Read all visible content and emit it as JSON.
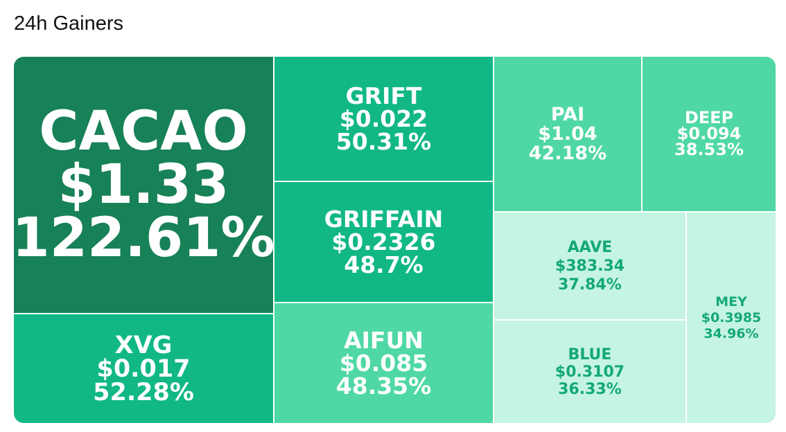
{
  "header": {
    "title": "24h Gainers"
  },
  "colors": {
    "dark": "#178157",
    "mid": "#11b886",
    "light": "#4fd8a5",
    "pale": "#c5f4e2",
    "pale_text": "#13a877"
  },
  "tiles": [
    {
      "symbol": "CACAO",
      "price": "$1.33",
      "change": "122.61%"
    },
    {
      "symbol": "XVG",
      "price": "$0.017",
      "change": "52.28%"
    },
    {
      "symbol": "GRIFT",
      "price": "$0.022",
      "change": "50.31%"
    },
    {
      "symbol": "GRIFFAIN",
      "price": "$0.2326",
      "change": "48.7%"
    },
    {
      "symbol": "AIFUN",
      "price": "$0.085",
      "change": "48.35%"
    },
    {
      "symbol": "PAI",
      "price": "$1.04",
      "change": "42.18%"
    },
    {
      "symbol": "DEEP",
      "price": "$0.094",
      "change": "38.53%"
    },
    {
      "symbol": "AAVE",
      "price": "$383.34",
      "change": "37.84%"
    },
    {
      "symbol": "BLUE",
      "price": "$0.3107",
      "change": "36.33%"
    },
    {
      "symbol": "MEY",
      "price": "$0.3985",
      "change": "34.96%"
    }
  ]
}
